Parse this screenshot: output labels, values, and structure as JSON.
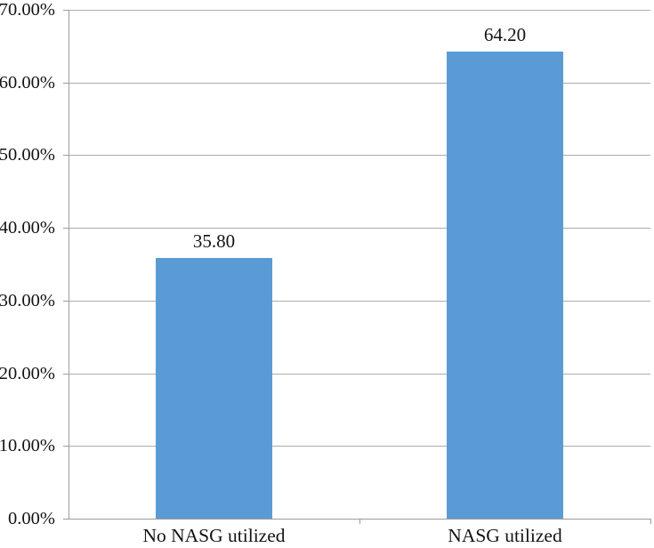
{
  "chart_data": {
    "type": "bar",
    "title": "",
    "xlabel": "",
    "ylabel": "",
    "categories": [
      "No NASG utilized",
      "NASG utilized"
    ],
    "values": [
      35.8,
      64.2
    ],
    "data_labels": [
      "35.80",
      "64.20"
    ],
    "ylim": [
      0,
      70
    ],
    "ytick_step": 10,
    "ytick_labels": [
      "0.00%",
      "10.00%",
      "20.00%",
      "30.00%",
      "40.00%",
      "50.00%",
      "60.00%",
      "70.00%"
    ],
    "grid": true,
    "legend": false,
    "colors": {
      "bar_fill": "#5B9BD5",
      "gridline": "#ACACAC",
      "axis": "#9C9C9C",
      "text": "#141414",
      "background": "#FFFFFF"
    }
  }
}
